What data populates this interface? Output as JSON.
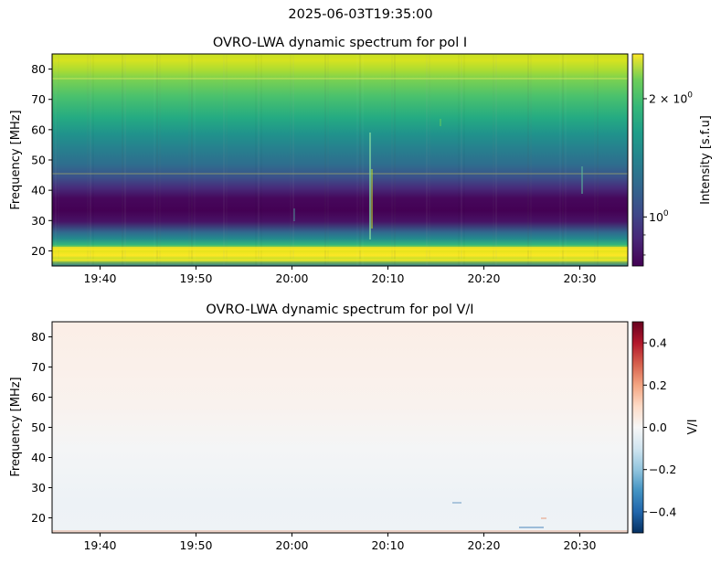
{
  "figure": {
    "suptitle": "2025-06-03T19:35:00"
  },
  "chart_data": [
    {
      "type": "heatmap",
      "title": "OVRO-LWA dynamic spectrum for pol I",
      "xlabel": "",
      "ylabel": "Frequency [MHz]",
      "x_ticks": [
        "19:40",
        "19:50",
        "20:00",
        "20:10",
        "20:20",
        "20:30"
      ],
      "x_tick_minutes": [
        5,
        15,
        25,
        35,
        45,
        55
      ],
      "x_range_minutes": [
        0,
        60
      ],
      "x_start": "19:35",
      "ylim": [
        15,
        85
      ],
      "y_ticks": [
        20,
        30,
        40,
        50,
        60,
        70,
        80
      ],
      "colormap": "viridis",
      "colorbar": {
        "label": "Intensity [s.f.u]",
        "scale": "log",
        "range": [
          0.75,
          2.6
        ],
        "ticks": [
          {
            "value": 1,
            "label": "10",
            "sup": "0"
          },
          {
            "value": 2,
            "label": "2 × 10",
            "sup": "0"
          }
        ]
      },
      "notes": "Bright bands near 17-20 MHz and 77-85 MHz, dark band near 25-42 MHz, narrow vertical bursts around 20:08"
    },
    {
      "type": "heatmap",
      "title": "OVRO-LWA dynamic spectrum for pol V/I",
      "xlabel": "",
      "ylabel": "Frequency [MHz]",
      "x_ticks": [
        "19:40",
        "19:50",
        "20:00",
        "20:10",
        "20:20",
        "20:30"
      ],
      "x_tick_minutes": [
        5,
        15,
        25,
        35,
        45,
        55
      ],
      "x_range_minutes": [
        0,
        60
      ],
      "x_start": "19:35",
      "ylim": [
        15,
        85
      ],
      "y_ticks": [
        20,
        30,
        40,
        50,
        60,
        70,
        80
      ],
      "colormap": "RdBu_r",
      "colorbar": {
        "label": "V/I",
        "scale": "linear",
        "range": [
          -0.5,
          0.5
        ],
        "ticks": [
          0.4,
          0.2,
          0.0,
          -0.2,
          -0.4
        ],
        "tick_labels": [
          "0.4",
          "0.2",
          "0.0",
          "−0.2",
          "−0.4"
        ]
      },
      "notes": "Near-zero everywhere; faint positive above ~40 MHz, faint negative below ~40 MHz"
    }
  ]
}
